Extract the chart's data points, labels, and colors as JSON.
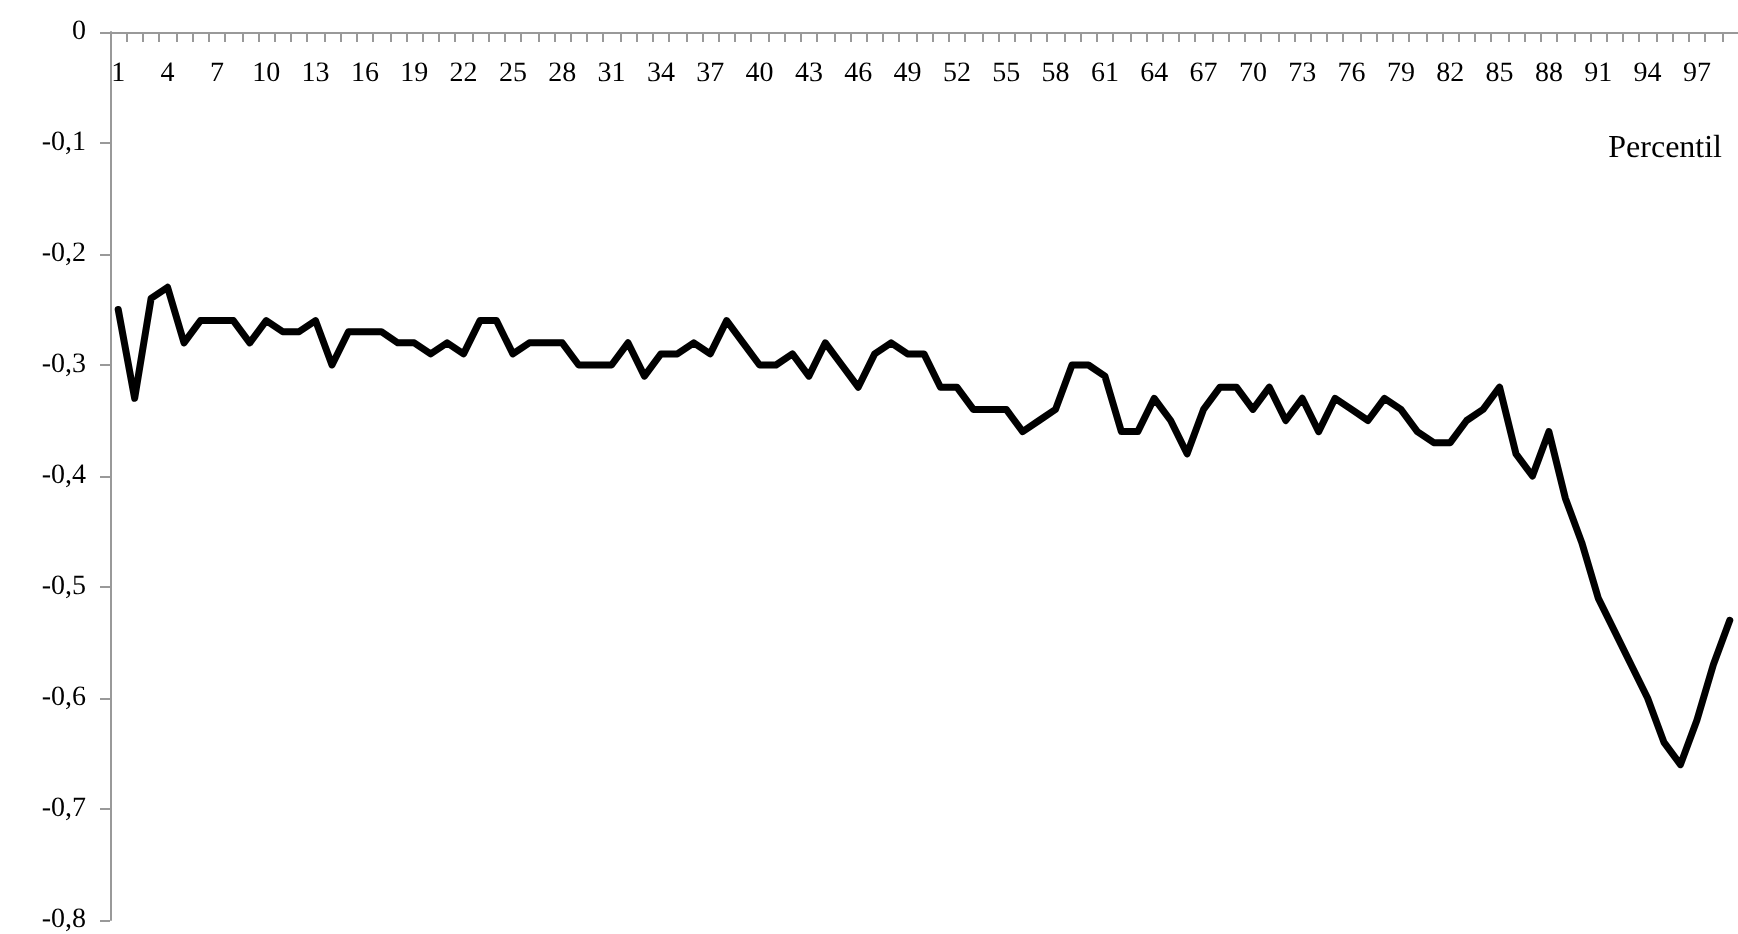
{
  "chart_data": {
    "type": "line",
    "xlabel": "Percentil",
    "categories": [
      "1",
      null,
      null,
      "4",
      null,
      null,
      "7",
      null,
      null,
      "10",
      null,
      null,
      "13",
      null,
      null,
      "16",
      null,
      null,
      "19",
      null,
      null,
      "22",
      null,
      null,
      "25",
      null,
      null,
      "28",
      null,
      null,
      "31",
      null,
      null,
      "34",
      null,
      null,
      "37",
      null,
      null,
      "40",
      null,
      null,
      "43",
      null,
      null,
      "46",
      null,
      null,
      "49",
      null,
      null,
      "52",
      null,
      null,
      "55",
      null,
      null,
      "58",
      null,
      null,
      "61",
      null,
      null,
      "64",
      null,
      null,
      "67",
      null,
      null,
      "70",
      null,
      null,
      "73",
      null,
      null,
      "76",
      null,
      null,
      "79",
      null,
      null,
      "82",
      null,
      null,
      "85",
      null,
      null,
      "88",
      null,
      null,
      "91",
      null,
      null,
      "94",
      null,
      null,
      "97",
      null,
      null
    ],
    "series": [
      {
        "color": "#000000",
        "values": [
          -0.25,
          -0.33,
          -0.24,
          -0.23,
          -0.28,
          -0.26,
          -0.26,
          -0.26,
          -0.28,
          -0.26,
          -0.27,
          -0.27,
          -0.26,
          -0.3,
          -0.27,
          -0.27,
          -0.27,
          -0.28,
          -0.28,
          -0.29,
          -0.28,
          -0.29,
          -0.26,
          -0.26,
          -0.29,
          -0.28,
          -0.28,
          -0.28,
          -0.3,
          -0.3,
          -0.3,
          -0.28,
          -0.31,
          -0.29,
          -0.29,
          -0.28,
          -0.29,
          -0.26,
          -0.28,
          -0.3,
          -0.3,
          -0.29,
          -0.31,
          -0.28,
          -0.3,
          -0.32,
          -0.29,
          -0.28,
          -0.29,
          -0.29,
          -0.32,
          -0.32,
          -0.34,
          -0.34,
          -0.34,
          -0.36,
          -0.35,
          -0.34,
          -0.3,
          -0.3,
          -0.31,
          -0.36,
          -0.36,
          -0.33,
          -0.35,
          -0.38,
          -0.34,
          -0.32,
          -0.32,
          -0.34,
          -0.32,
          -0.35,
          -0.33,
          -0.36,
          -0.33,
          -0.34,
          -0.35,
          -0.33,
          -0.34,
          -0.36,
          -0.37,
          -0.37,
          -0.35,
          -0.34,
          -0.32,
          -0.38,
          -0.4,
          -0.36,
          -0.42,
          -0.46,
          -0.51,
          -0.54,
          -0.57,
          -0.6,
          -0.64,
          -0.66,
          -0.62,
          -0.57,
          -0.53
        ]
      }
    ],
    "ylim": [
      -0.8,
      0
    ],
    "yticks": [
      {
        "value": -0.8,
        "label": "-0,8"
      },
      {
        "value": -0.7,
        "label": "-0,7"
      },
      {
        "value": -0.6,
        "label": "-0,6"
      },
      {
        "value": -0.5,
        "label": "-0,5"
      },
      {
        "value": -0.4,
        "label": "-0,4"
      },
      {
        "value": -0.3,
        "label": "-0,3"
      },
      {
        "value": -0.2,
        "label": "-0,2"
      },
      {
        "value": -0.1,
        "label": "-0,1"
      },
      0
    ],
    "marker": "none",
    "line_style": "solid"
  }
}
